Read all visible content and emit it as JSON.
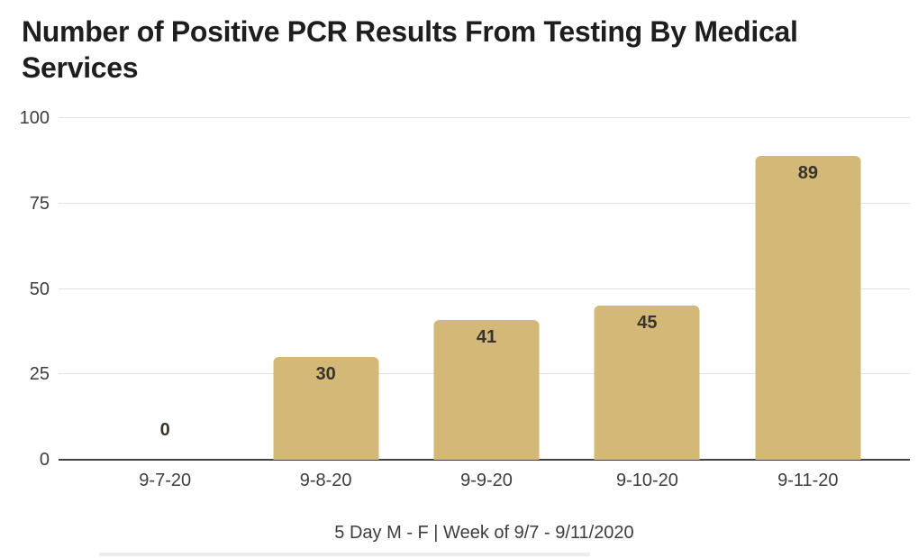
{
  "page": {
    "background": "#ffffff"
  },
  "chart_data": {
    "type": "bar",
    "title": "Number of Positive PCR Results From Testing By Medical Services",
    "subtitle": "5 Day M - F | Week of 9/7 - 9/11/2020",
    "categories": [
      "9-7-20",
      "9-8-20",
      "9-9-20",
      "9-10-20",
      "9-11-20"
    ],
    "values": [
      0,
      30,
      41,
      45,
      89
    ],
    "y_ticks": [
      0,
      25,
      50,
      75,
      100
    ],
    "ylim": [
      0,
      100
    ],
    "xlabel": "",
    "ylabel": "",
    "grid": true,
    "legend_position": "none",
    "bar_color": "#d3b877",
    "value_label_color": "#38332b",
    "axis_label_color": "#3d3d3d",
    "title_color": "#1e1e1e",
    "grid_color": "#e2e2e2",
    "axis_line_color": "#424242"
  }
}
